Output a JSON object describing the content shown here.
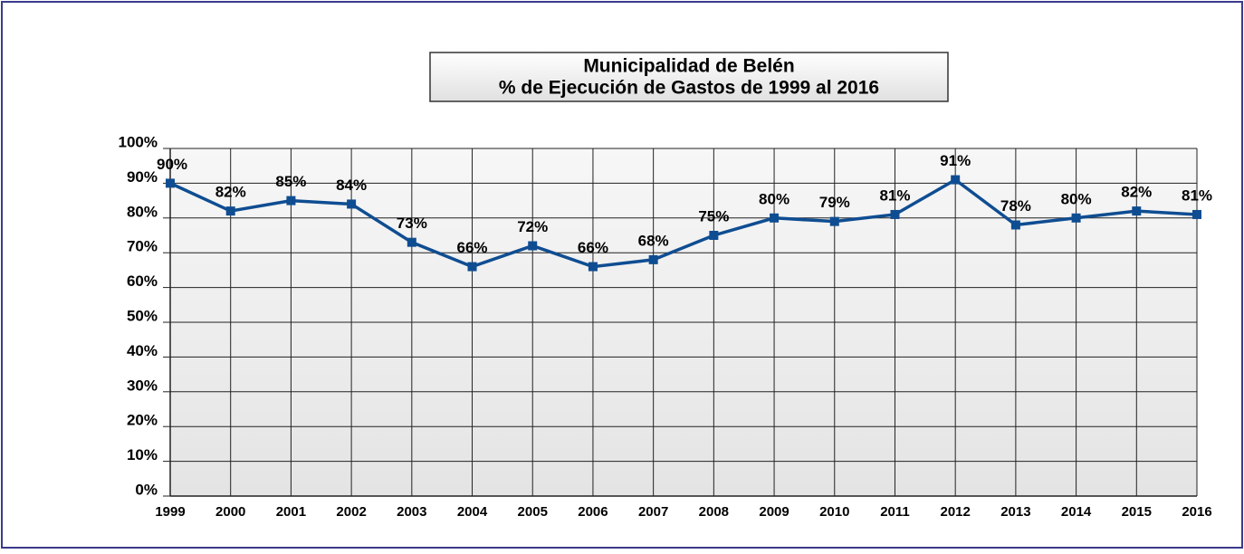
{
  "chart_data": {
    "type": "line",
    "title": "Municipalidad de Belén",
    "subtitle": "% de Ejecución de Gastos de 1999 al 2016",
    "categories": [
      "1999",
      "2000",
      "2001",
      "2002",
      "2003",
      "2004",
      "2005",
      "2006",
      "2007",
      "2008",
      "2009",
      "2010",
      "2011",
      "2012",
      "2013",
      "2014",
      "2015",
      "2016"
    ],
    "series": [
      {
        "color": "#0f4d92",
        "values": [
          90,
          82,
          85,
          84,
          73,
          66,
          72,
          66,
          68,
          75,
          80,
          79,
          81,
          91,
          78,
          80,
          82,
          81
        ],
        "value_labels": [
          "90%",
          "82%",
          "85%",
          "84%",
          "73%",
          "66%",
          "72%",
          "66%",
          "68%",
          "75%",
          "80%",
          "79%",
          "81%",
          "91%",
          "78%",
          "80%",
          "82%",
          "81%"
        ]
      }
    ],
    "ylim": [
      0,
      100
    ],
    "yticks": [
      {
        "value": 0,
        "label": "0%"
      },
      {
        "value": 10,
        "label": "10%"
      },
      {
        "value": 20,
        "label": "20%"
      },
      {
        "value": 30,
        "label": "30%"
      },
      {
        "value": 40,
        "label": "40%"
      },
      {
        "value": 50,
        "label": "50%"
      },
      {
        "value": 60,
        "label": "60%"
      },
      {
        "value": 70,
        "label": "70%"
      },
      {
        "value": 80,
        "label": "80%"
      },
      {
        "value": 90,
        "label": "90%"
      },
      {
        "value": 100,
        "label": "100%"
      }
    ],
    "grid": true
  }
}
